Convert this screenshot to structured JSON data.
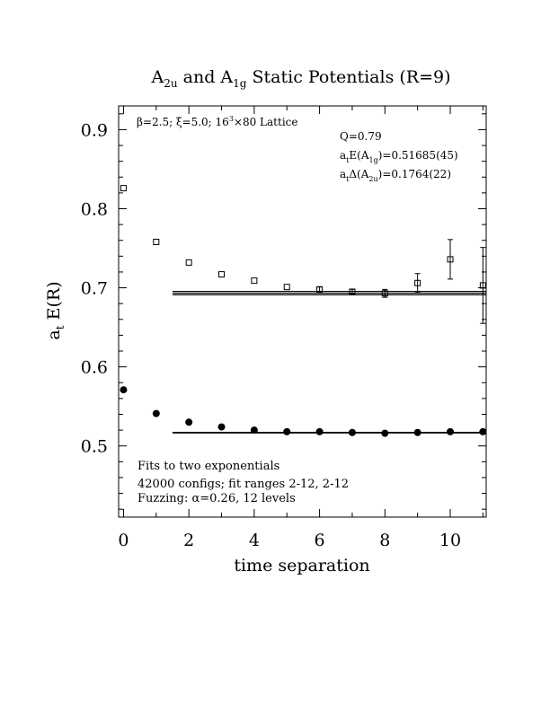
{
  "chart_data": {
    "type": "scatter",
    "title": {
      "base1": "A",
      "sub1": "2u",
      "mid": " and A",
      "sub2": "1g",
      "rest": " Static Potentials (R=9)"
    },
    "xlabel": "time separation",
    "ylabel": {
      "base": "a",
      "sub": "t",
      "rest": " E(R)"
    },
    "xlim": [
      -0.15,
      11.1
    ],
    "ylim": [
      0.41,
      0.93
    ],
    "x_ticks": [
      "0",
      "2",
      "4",
      "6",
      "8",
      "10"
    ],
    "y_ticks": [
      "0.5",
      "0.6",
      "0.7",
      "0.8",
      "0.9"
    ],
    "annotations": {
      "lattice": {
        "beta": "β=2.5; ",
        "xi": "ξ=5.0; ",
        "size": "16",
        "exp": "3",
        "rest": "×80 Lattice"
      },
      "q": "Q=0.79",
      "fit1": {
        "a": "a",
        "sub": "t",
        "mid": "E(A",
        "sub2": "1g",
        "rest": ")=0.51685(45)"
      },
      "fit2": {
        "a": "a",
        "sub": "t",
        "mid": "Δ(A",
        "sub2": "2u",
        "rest": ")=0.1764(22)"
      },
      "bottom1": "Fits to two exponentials",
      "bottom2": "42000 configs; fit ranges 2-12, 2-12",
      "bottom3": {
        "pre": "Fuzzing: ",
        "alpha": "α",
        "rest": "=0.26, 12 levels"
      }
    },
    "series": [
      {
        "marker": "open-square",
        "points": [
          {
            "x": 0,
            "y": 0.826,
            "err": 0.002
          },
          {
            "x": 1,
            "y": 0.758,
            "err": 0.002
          },
          {
            "x": 2,
            "y": 0.732,
            "err": 0.002
          },
          {
            "x": 3,
            "y": 0.717,
            "err": 0.002
          },
          {
            "x": 4,
            "y": 0.709,
            "err": 0.002
          },
          {
            "x": 5,
            "y": 0.701,
            "err": 0.002
          },
          {
            "x": 6,
            "y": 0.698,
            "err": 0.003
          },
          {
            "x": 7,
            "y": 0.695,
            "err": 0.003
          },
          {
            "x": 8,
            "y": 0.693,
            "err": 0.005
          },
          {
            "x": 9,
            "y": 0.706,
            "err": 0.012
          },
          {
            "x": 10,
            "y": 0.736,
            "err": 0.025
          },
          {
            "x": 11,
            "y": 0.703,
            "err": 0.048
          }
        ],
        "fit": {
          "x_from": 1.5,
          "x_to": 11.1,
          "y": 0.69325,
          "band": 0.0022
        }
      },
      {
        "marker": "filled-circle",
        "points": [
          {
            "x": 0,
            "y": 0.571,
            "err": 0.001
          },
          {
            "x": 1,
            "y": 0.541,
            "err": 0.001
          },
          {
            "x": 2,
            "y": 0.53,
            "err": 0.001
          },
          {
            "x": 3,
            "y": 0.524,
            "err": 0.001
          },
          {
            "x": 4,
            "y": 0.52,
            "err": 0.001
          },
          {
            "x": 5,
            "y": 0.518,
            "err": 0.001
          },
          {
            "x": 6,
            "y": 0.518,
            "err": 0.001
          },
          {
            "x": 7,
            "y": 0.517,
            "err": 0.001
          },
          {
            "x": 8,
            "y": 0.516,
            "err": 0.001
          },
          {
            "x": 9,
            "y": 0.517,
            "err": 0.001
          },
          {
            "x": 10,
            "y": 0.518,
            "err": 0.002
          },
          {
            "x": 11,
            "y": 0.518,
            "err": 0.002
          }
        ],
        "fit": {
          "x_from": 1.5,
          "x_to": 11.1,
          "y": 0.51685,
          "band": 0.00045
        }
      }
    ]
  }
}
